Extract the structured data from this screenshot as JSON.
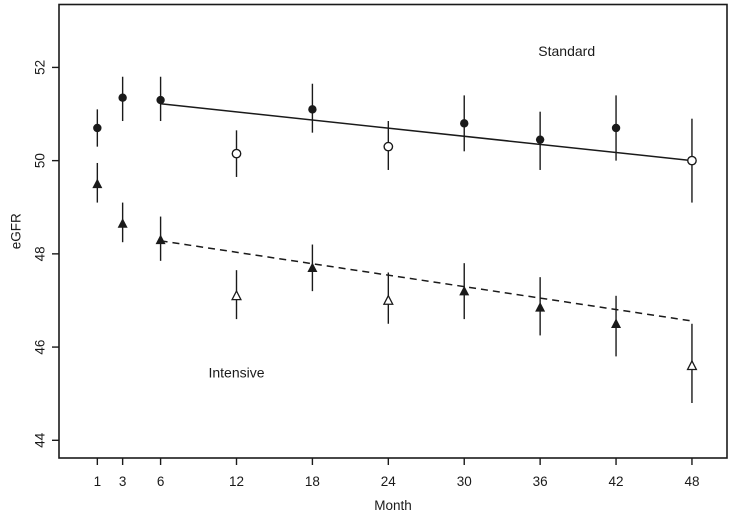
{
  "figure": {
    "background": "#ffffff",
    "ink_color": "#1a1a1a"
  },
  "chart_data": {
    "type": "scatter",
    "title": "",
    "xlabel": "Month",
    "ylabel": "eGFR",
    "xlim": [
      -2.03,
      50.77
    ],
    "ylim": [
      43.62,
      53.35
    ],
    "x_ticks": [
      1,
      3,
      6,
      12,
      18,
      24,
      30,
      36,
      42,
      48
    ],
    "y_ticks": [
      44,
      46,
      48,
      50,
      52
    ],
    "grid": false,
    "legend_position": "in-plot text annotations",
    "annotations": [
      {
        "id": "standard-label",
        "text": "Standard",
        "x": 38.1,
        "y": 52.35
      },
      {
        "id": "intensive-label",
        "text": "Intensive",
        "x": 12.0,
        "y": 45.45
      }
    ],
    "series": [
      {
        "name": "Standard observed (filled circles)",
        "group": "Standard",
        "marker": "circle-filled",
        "points": [
          {
            "x": 1,
            "y": 50.7,
            "lo": 50.3,
            "hi": 51.1
          },
          {
            "x": 3,
            "y": 51.35,
            "lo": 50.85,
            "hi": 51.8
          },
          {
            "x": 6,
            "y": 51.3,
            "lo": 50.85,
            "hi": 51.8
          },
          {
            "x": 18,
            "y": 51.1,
            "lo": 50.6,
            "hi": 51.65
          },
          {
            "x": 30,
            "y": 50.8,
            "lo": 50.2,
            "hi": 51.4
          },
          {
            "x": 36,
            "y": 50.45,
            "lo": 49.8,
            "hi": 51.05
          },
          {
            "x": 42,
            "y": 50.7,
            "lo": 50.0,
            "hi": 51.4
          }
        ]
      },
      {
        "name": "Standard interim (open circles)",
        "group": "Standard",
        "marker": "circle-open",
        "points": [
          {
            "x": 12,
            "y": 50.15,
            "lo": 49.65,
            "hi": 50.65
          },
          {
            "x": 24,
            "y": 50.3,
            "lo": 49.8,
            "hi": 50.85
          },
          {
            "x": 48,
            "y": 50.0,
            "lo": 49.1,
            "hi": 50.9
          }
        ]
      },
      {
        "name": "Intensive observed (filled triangles)",
        "group": "Intensive",
        "marker": "triangle-filled",
        "points": [
          {
            "x": 1,
            "y": 49.5,
            "lo": 49.1,
            "hi": 49.95
          },
          {
            "x": 3,
            "y": 48.65,
            "lo": 48.25,
            "hi": 49.1
          },
          {
            "x": 6,
            "y": 48.3,
            "lo": 47.85,
            "hi": 48.8
          },
          {
            "x": 18,
            "y": 47.7,
            "lo": 47.2,
            "hi": 48.2
          },
          {
            "x": 30,
            "y": 47.2,
            "lo": 46.6,
            "hi": 47.8
          },
          {
            "x": 36,
            "y": 46.85,
            "lo": 46.25,
            "hi": 47.5
          },
          {
            "x": 42,
            "y": 46.5,
            "lo": 45.8,
            "hi": 47.1
          }
        ]
      },
      {
        "name": "Intensive interim (open triangles)",
        "group": "Intensive",
        "marker": "triangle-open",
        "points": [
          {
            "x": 12,
            "y": 47.1,
            "lo": 46.6,
            "hi": 47.65
          },
          {
            "x": 24,
            "y": 47.0,
            "lo": 46.5,
            "hi": 47.6
          },
          {
            "x": 48,
            "y": 45.6,
            "lo": 44.8,
            "hi": 46.5
          }
        ]
      }
    ],
    "trend_lines": [
      {
        "name": "Standard trend",
        "style": "solid",
        "x1": 6,
        "y1": 51.22,
        "x2": 48,
        "y2": 50.0
      },
      {
        "name": "Intensive trend",
        "style": "dashed",
        "x1": 6,
        "y1": 48.28,
        "x2": 48,
        "y2": 46.56
      }
    ]
  }
}
